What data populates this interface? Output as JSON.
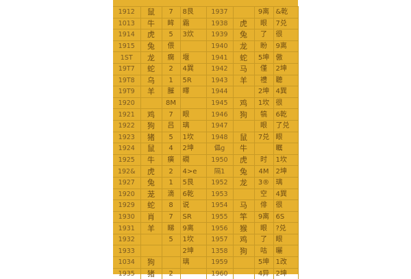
{
  "colors": {
    "background": "#e6b12e",
    "grid": "#c89a25",
    "text": "#6e4c12"
  },
  "rows": [
    [
      "1912",
      "鼠",
      "7",
      "8艮",
      "1937",
      "",
      "9离",
      "&乾"
    ],
    [
      "1013",
      "牛",
      "眸",
      "霜",
      "1938",
      "虎",
      "眼",
      "7兑"
    ],
    [
      "1914",
      "虎",
      "5",
      "3炊",
      "1939",
      "兔",
      "了",
      "很"
    ],
    [
      "1915",
      "兔",
      "偎",
      "",
      "1940",
      "龙",
      "盼",
      "9离"
    ],
    [
      "1ST",
      "龙",
      "瘸",
      "堰",
      "1941",
      "蛇",
      "5坤",
      "傲"
    ],
    [
      "19T7",
      "蛇",
      "2",
      "4巽",
      "1942",
      "马",
      "僅",
      "2坤"
    ],
    [
      "19T8",
      "乌",
      "1",
      "5R",
      "1943",
      "羊",
      "禮",
      "聽"
    ],
    [
      "19T9",
      "羊",
      "膗",
      "曎",
      "1944",
      "",
      "2坤",
      "4巽"
    ],
    [
      "1920",
      "",
      "8M",
      "",
      "1945",
      "鸡",
      "1坎",
      "很"
    ],
    [
      "1921",
      "鸡",
      "7",
      "眼",
      "1946",
      "狗",
      "犒",
      "6乾"
    ],
    [
      "1922",
      "狗",
      "吕",
      "璃",
      "1947",
      "",
      "眼",
      "了兑"
    ],
    [
      "1923",
      "猪",
      "5",
      "1坎",
      "1948",
      "鼠",
      "7兑",
      "眼"
    ],
    [
      "1924",
      "鼠",
      "4",
      "2坤",
      "儡g",
      "牛",
      "",
      "瞩"
    ],
    [
      "1925",
      "牛",
      "癀",
      "礀",
      "1950",
      "虎",
      "时",
      "1坎"
    ],
    [
      "192&",
      "虎",
      "2",
      "4>e",
      "隔1",
      "兔",
      "4M",
      "2坤"
    ],
    [
      "1927",
      "兔",
      "1",
      "5艮",
      "1952",
      "龙",
      "3®",
      "璃"
    ],
    [
      "1920",
      "茏",
      "滴",
      "6乾",
      "1953",
      "",
      "空",
      "4巽"
    ],
    [
      "1929",
      "蛇",
      "8",
      "说",
      "1954",
      "马",
      "俳",
      "很"
    ],
    [
      "1930",
      "肖",
      "7",
      "SR",
      "1955",
      "竿",
      "9离",
      "6S"
    ],
    [
      "1931",
      "羊",
      "睇",
      "9离",
      "1956",
      "猴",
      "眼",
      "?兑"
    ],
    [
      "1932",
      "",
      "5",
      "1坎",
      "1957",
      "鸡",
      "了",
      "眼"
    ],
    [
      "1933",
      "",
      "",
      "2坤",
      "1358",
      "狗",
      "咕",
      "曬"
    ],
    [
      "1034",
      "狗",
      "",
      "璃",
      "1959",
      "",
      "5坤",
      "1改"
    ],
    [
      "1935",
      "猪",
      "2",
      "",
      "1960",
      "",
      "4异",
      "2坤"
    ]
  ]
}
